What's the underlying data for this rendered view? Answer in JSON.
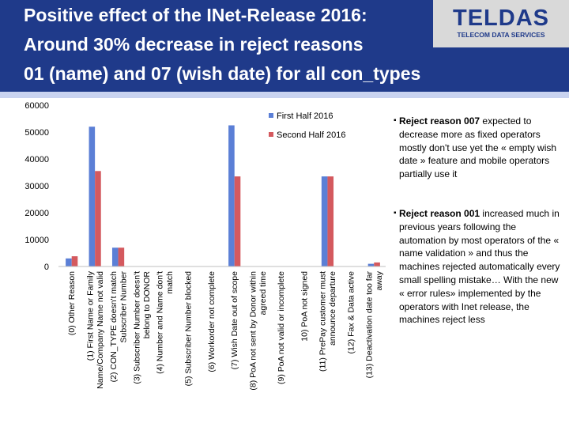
{
  "slide": {
    "title_lines": [
      "Positive effect of the INet-Release 2016:",
      "Around 30% decrease in reject reasons",
      "01 (name) and 07 (wish date) for all con_types"
    ],
    "logo_main": "TELDAS",
    "logo_sub": "TELECOM DATA SERVICES"
  },
  "bullets": [
    {
      "bold": "Reject reason 007",
      "text": " expected to decrease more as fixed operators mostly don't use yet the « empty wish date » feature and mobile operators partially use it"
    },
    {
      "bold": "Reject reason 001",
      "text": " increased much in previous years following the automation by most operators of the « name validation » and thus the machines rejected automatically every small spelling mistake… With the new « error rules» implemented by the operators with Inet release, the machines reject less"
    }
  ],
  "chart_data": {
    "type": "bar",
    "title": "",
    "xlabel": "",
    "ylabel": "",
    "ylim": [
      0,
      60000
    ],
    "yticks": [
      "0",
      "10000",
      "20000",
      "30000",
      "40000",
      "50000",
      "60000"
    ],
    "categories": [
      [
        "(0) Other Reason"
      ],
      [
        "(1) First Name or Family",
        "Name/Company Name not valid"
      ],
      [
        "(2) CON_TYPE doesn't match",
        "Subscriber Number"
      ],
      [
        "(3) Subscriber Number doesn't",
        "belong to DONOR"
      ],
      [
        "(4) Number and Name don't",
        "match"
      ],
      [
        "(5) Subscriber Number blocked"
      ],
      [
        "(6) Workorder not complete"
      ],
      [
        "(7) Wish Date out of scope"
      ],
      [
        "(8) PoA not sent by Donor within",
        "agreed time"
      ],
      [
        "(9) PoA not valid or incomplete"
      ],
      [
        "10) PoA not signed"
      ],
      [
        "(11) PrePay customer must",
        "announce departure"
      ],
      [
        "(12) Fax & Data active"
      ],
      [
        "(13) Deactivation date too far",
        "away"
      ]
    ],
    "series": [
      {
        "name": "First Half 2016",
        "color": "#5b7fd6",
        "values": [
          3000,
          52000,
          7000,
          0,
          0,
          0,
          0,
          52500,
          0,
          0,
          0,
          33500,
          0,
          1000
        ]
      },
      {
        "name": "Second Half 2016",
        "color": "#d4595e",
        "values": [
          3800,
          35500,
          7000,
          0,
          0,
          0,
          0,
          33500,
          0,
          0,
          0,
          33500,
          0,
          1500
        ]
      }
    ],
    "legend": "top-right"
  }
}
